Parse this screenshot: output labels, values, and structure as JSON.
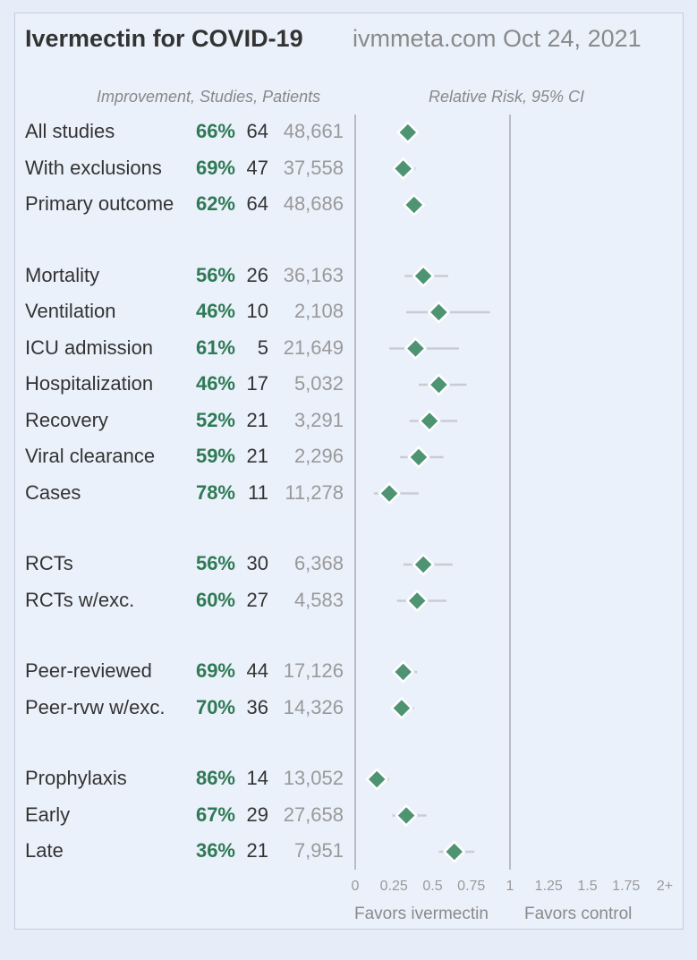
{
  "header": {
    "title": "Ivermectin for COVID-19",
    "site_date": "ivmmeta.com Oct 24, 2021",
    "left_header": "Improvement, Studies, Patients",
    "right_header": "Relative Risk, 95% CI"
  },
  "footer": {
    "favors_left": "Favors ivermectin",
    "favors_right": "Favors control"
  },
  "colors": {
    "marker": "#4e9473",
    "improvement_text": "#2f7a55",
    "ci_line": "#c9ccd4",
    "axis_line": "#b8bcc6"
  },
  "chart_data": {
    "type": "forest",
    "title": "Ivermectin for COVID-19",
    "x_axis": {
      "ticks": [
        0,
        0.25,
        0.5,
        0.75,
        1,
        1.25,
        1.5,
        1.75,
        2
      ],
      "tick_labels": [
        "0",
        "0.25",
        "0.5",
        "0.75",
        "1",
        "1.25",
        "1.5",
        "1.75",
        "2+"
      ],
      "range": [
        0,
        2
      ]
    },
    "rows": [
      {
        "label": "All studies",
        "improvement": "66%",
        "studies": "64",
        "patients": "48,661",
        "rr": 0.34,
        "ci": [
          0.29,
          0.41
        ],
        "group": 0
      },
      {
        "label": "With exclusions",
        "improvement": "69%",
        "studies": "47",
        "patients": "37,558",
        "rr": 0.31,
        "ci": [
          0.25,
          0.39
        ],
        "group": 0
      },
      {
        "label": "Primary outcome",
        "improvement": "62%",
        "studies": "64",
        "patients": "48,686",
        "rr": 0.38,
        "ci": [
          0.32,
          0.44
        ],
        "group": 0
      },
      {
        "label": "Mortality",
        "improvement": "56%",
        "studies": "26",
        "patients": "36,163",
        "rr": 0.44,
        "ci": [
          0.32,
          0.6
        ],
        "group": 1
      },
      {
        "label": "Ventilation",
        "improvement": "46%",
        "studies": "10",
        "patients": "2,108",
        "rr": 0.54,
        "ci": [
          0.33,
          0.87
        ],
        "group": 1
      },
      {
        "label": "ICU admission",
        "improvement": "61%",
        "studies": "5",
        "patients": "21,649",
        "rr": 0.39,
        "ci": [
          0.22,
          0.67
        ],
        "group": 1
      },
      {
        "label": "Hospitalization",
        "improvement": "46%",
        "studies": "17",
        "patients": "5,032",
        "rr": 0.54,
        "ci": [
          0.41,
          0.72
        ],
        "group": 1
      },
      {
        "label": "Recovery",
        "improvement": "52%",
        "studies": "21",
        "patients": "3,291",
        "rr": 0.48,
        "ci": [
          0.35,
          0.66
        ],
        "group": 1
      },
      {
        "label": "Viral clearance",
        "improvement": "59%",
        "studies": "21",
        "patients": "2,296",
        "rr": 0.41,
        "ci": [
          0.29,
          0.57
        ],
        "group": 1
      },
      {
        "label": "Cases",
        "improvement": "78%",
        "studies": "11",
        "patients": "11,278",
        "rr": 0.22,
        "ci": [
          0.12,
          0.41
        ],
        "group": 1
      },
      {
        "label": "RCTs",
        "improvement": "56%",
        "studies": "30",
        "patients": "6,368",
        "rr": 0.44,
        "ci": [
          0.31,
          0.63
        ],
        "group": 2
      },
      {
        "label": "RCTs w/exc.",
        "improvement": "60%",
        "studies": "27",
        "patients": "4,583",
        "rr": 0.4,
        "ci": [
          0.27,
          0.59
        ],
        "group": 2
      },
      {
        "label": "Peer-reviewed",
        "improvement": "69%",
        "studies": "44",
        "patients": "17,126",
        "rr": 0.31,
        "ci": [
          0.25,
          0.4
        ],
        "group": 3
      },
      {
        "label": "Peer-rvw w/exc.",
        "improvement": "70%",
        "studies": "36",
        "patients": "14,326",
        "rr": 0.3,
        "ci": [
          0.24,
          0.38
        ],
        "group": 3
      },
      {
        "label": "Prophylaxis",
        "improvement": "86%",
        "studies": "14",
        "patients": "13,052",
        "rr": 0.14,
        "ci": [
          0.1,
          0.22
        ],
        "group": 4
      },
      {
        "label": "Early",
        "improvement": "67%",
        "studies": "29",
        "patients": "27,658",
        "rr": 0.33,
        "ci": [
          0.24,
          0.46
        ],
        "group": 4
      },
      {
        "label": "Late",
        "improvement": "36%",
        "studies": "21",
        "patients": "7,951",
        "rr": 0.64,
        "ci": [
          0.54,
          0.77
        ],
        "group": 4
      }
    ]
  }
}
